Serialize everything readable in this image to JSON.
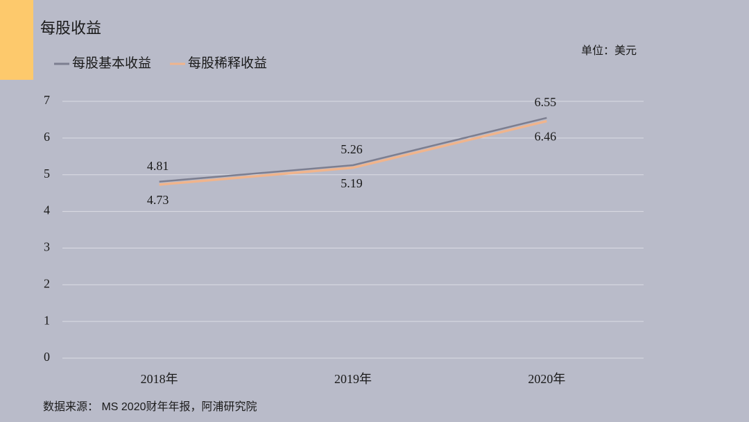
{
  "chart_data": {
    "type": "line",
    "title": "每股收益",
    "unit_note": "单位：美元",
    "source": "数据来源： MS 2020财年年报，阿浦研究院",
    "categories": [
      "2018年",
      "2019年",
      "2020年"
    ],
    "series": [
      {
        "name": "每股基本收益",
        "color": "#7c7e90",
        "values": [
          4.81,
          5.26,
          6.55
        ]
      },
      {
        "name": "每股稀释收益",
        "color": "#f0b48c",
        "values": [
          4.73,
          5.19,
          6.46
        ]
      }
    ],
    "ylim": [
      0,
      7
    ],
    "yticks": [
      0,
      1,
      2,
      3,
      4,
      5,
      6,
      7
    ],
    "grid": true,
    "legend": "top-left"
  }
}
